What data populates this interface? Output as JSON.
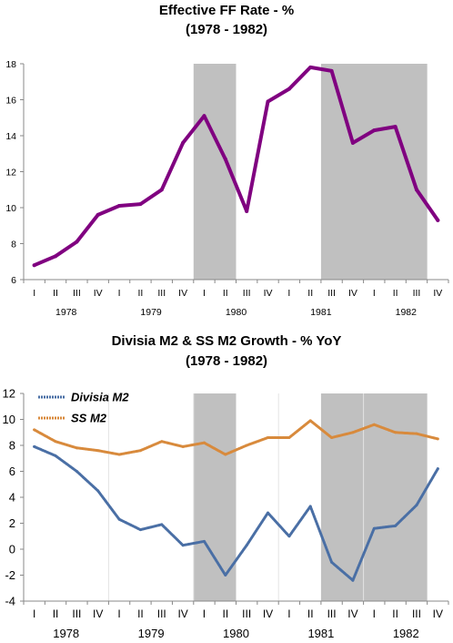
{
  "chart_data": [
    {
      "type": "line",
      "title": "Effective FF Rate - %",
      "subtitle": "(1978 - 1982)",
      "quarters": [
        "I",
        "II",
        "III",
        "IV",
        "I",
        "II",
        "III",
        "IV",
        "I",
        "II",
        "III",
        "IV",
        "I",
        "II",
        "III",
        "IV",
        "I",
        "II",
        "III",
        "IV"
      ],
      "years": [
        "1978",
        "1979",
        "1980",
        "1981",
        "1982"
      ],
      "ylim": [
        6,
        18
      ],
      "yticks": [
        6,
        8,
        10,
        12,
        14,
        16,
        18
      ],
      "recession_shading": [
        [
          8,
          10
        ],
        [
          14,
          19
        ]
      ],
      "series": [
        {
          "color": "#800080",
          "values": [
            6.8,
            7.3,
            8.1,
            9.6,
            10.1,
            10.2,
            11.0,
            13.6,
            15.1,
            12.7,
            9.8,
            15.9,
            16.6,
            17.8,
            17.6,
            13.6,
            14.3,
            14.5,
            11.0,
            9.3
          ]
        }
      ]
    },
    {
      "type": "line",
      "title": "Divisia M2 & SS M2 Growth - % YoY",
      "subtitle": "(1978 - 1982)",
      "quarters": [
        "I",
        "II",
        "III",
        "IV",
        "I",
        "II",
        "III",
        "IV",
        "I",
        "II",
        "III",
        "IV",
        "I",
        "II",
        "III",
        "IV",
        "I",
        "II",
        "III",
        "IV"
      ],
      "years": [
        "1978",
        "1979",
        "1980",
        "1981",
        "1982"
      ],
      "ylim": [
        -4,
        12
      ],
      "yticks": [
        -4,
        -2,
        0,
        2,
        4,
        6,
        8,
        10,
        12
      ],
      "grid": "vertical",
      "legend": "top-left",
      "recession_shading": [
        [
          8,
          10
        ],
        [
          14,
          19
        ]
      ],
      "series": [
        {
          "name": "Divisia M2",
          "color": "#4a6fa5",
          "values": [
            7.9,
            7.2,
            6.0,
            4.5,
            2.3,
            1.5,
            1.9,
            0.3,
            0.6,
            -2.0,
            0.3,
            2.8,
            1.0,
            3.3,
            -1.0,
            -2.4,
            1.6,
            1.8,
            3.4,
            6.2
          ]
        },
        {
          "name": "SS M2",
          "color": "#d88a3c",
          "values": [
            9.2,
            8.3,
            7.8,
            7.6,
            7.3,
            7.6,
            8.3,
            7.9,
            8.2,
            7.3,
            8.0,
            8.6,
            8.6,
            9.9,
            8.6,
            9.0,
            9.6,
            9.0,
            8.9,
            8.5
          ]
        }
      ]
    }
  ]
}
